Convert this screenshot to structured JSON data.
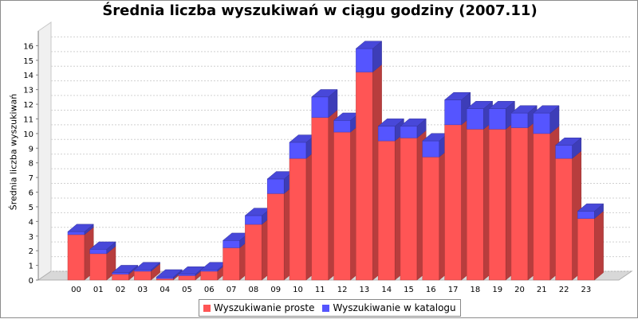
{
  "chart_data": {
    "type": "bar",
    "stacked": true,
    "title": "Średnia liczba wyszukiwań w ciągu godziny (2007.11)",
    "xlabel": "",
    "ylabel": "Średnia liczba wyszukiwań",
    "ylim": [
      0,
      17
    ],
    "yticks": [
      0,
      1,
      2,
      3,
      4,
      5,
      6,
      7,
      8,
      9,
      10,
      11,
      12,
      13,
      14,
      15,
      16
    ],
    "grid": true,
    "legend_position": "bottom",
    "categories": [
      "00",
      "01",
      "02",
      "03",
      "04",
      "05",
      "06",
      "07",
      "08",
      "09",
      "10",
      "11",
      "12",
      "13",
      "14",
      "15",
      "16",
      "17",
      "18",
      "19",
      "20",
      "21",
      "22",
      "23"
    ],
    "series": [
      {
        "name": "Wyszukiwanie proste",
        "color": "#ff5555",
        "values": [
          3.1,
          1.8,
          0.4,
          0.6,
          0.1,
          0.3,
          0.6,
          2.2,
          3.8,
          5.9,
          8.3,
          11.1,
          10.1,
          14.2,
          9.5,
          9.7,
          8.4,
          10.6,
          10.3,
          10.3,
          10.4,
          10.0,
          8.3,
          4.2
        ]
      },
      {
        "name": "Wyszukiwanie w katalogu",
        "color": "#5555ff",
        "values": [
          0.2,
          0.3,
          0.1,
          0.1,
          0.1,
          0.1,
          0.1,
          0.5,
          0.6,
          1.0,
          1.1,
          1.4,
          0.8,
          1.6,
          1.0,
          0.8,
          1.1,
          1.7,
          1.4,
          1.4,
          1.0,
          1.4,
          0.9,
          0.5
        ]
      }
    ]
  }
}
